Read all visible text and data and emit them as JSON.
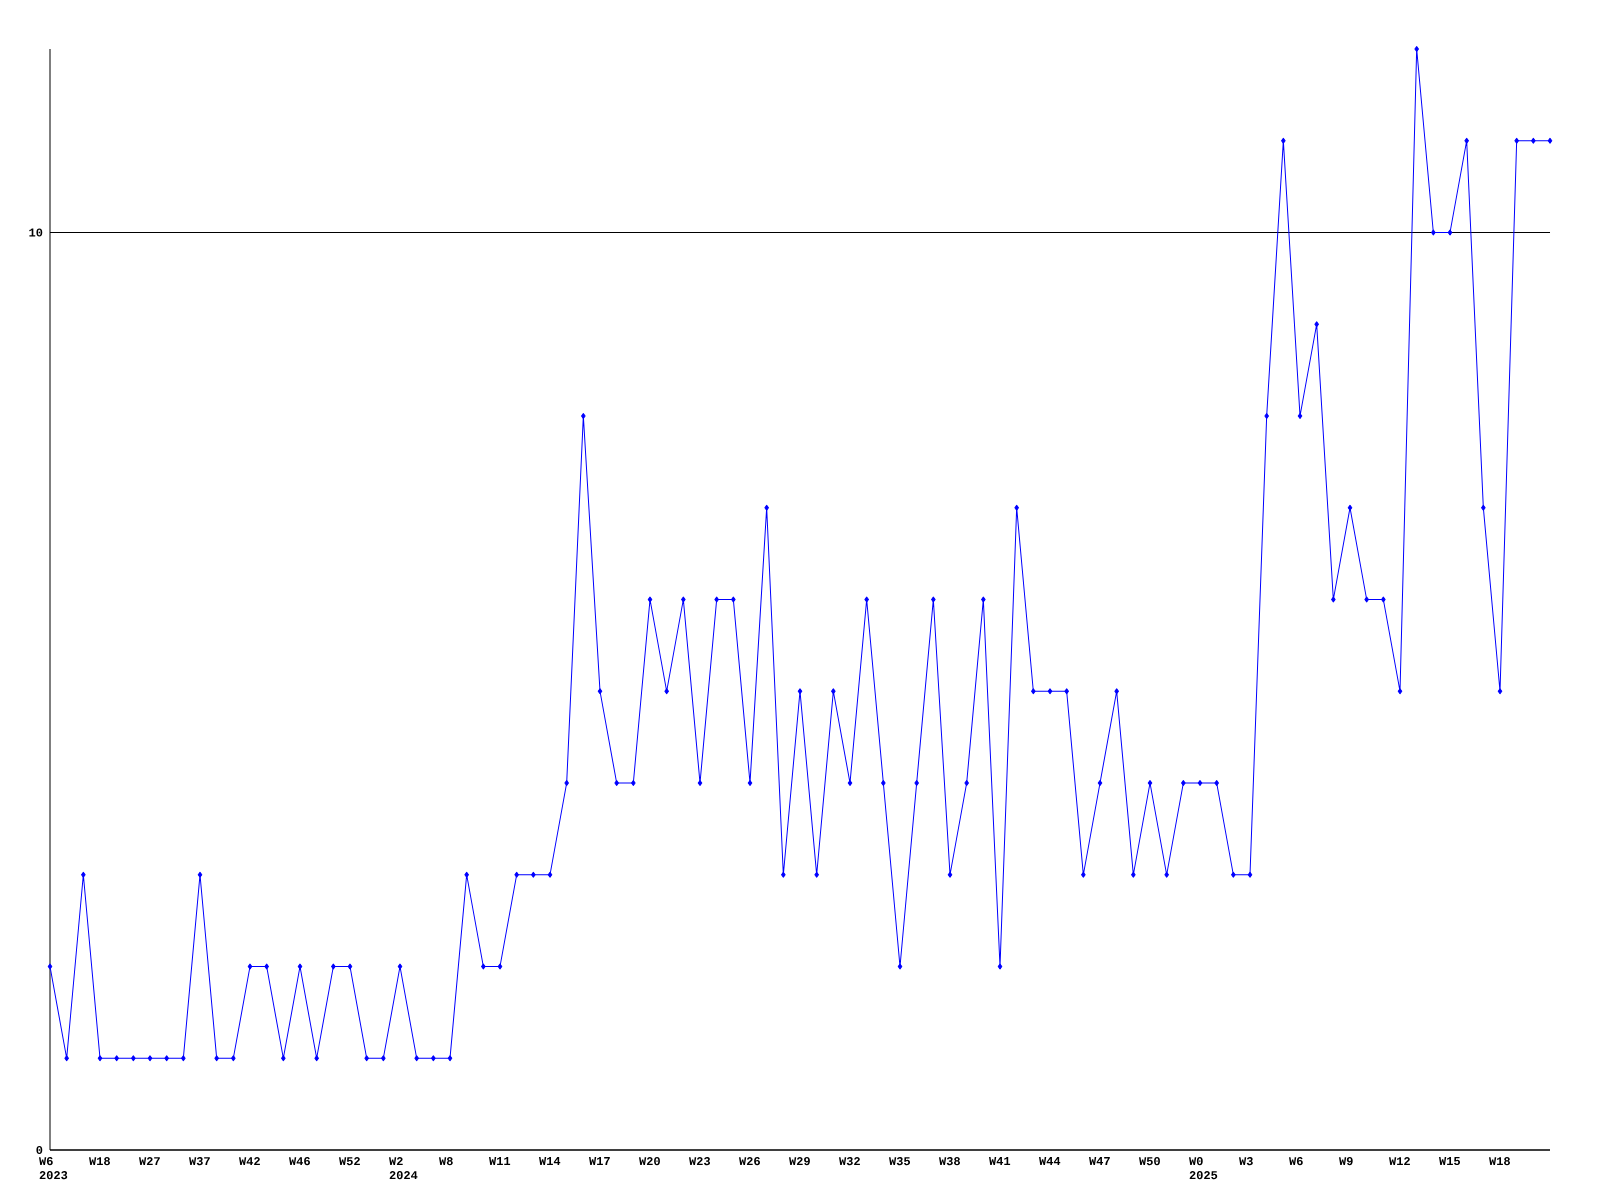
{
  "chart_data": {
    "type": "line",
    "categories": [
      "W6 2023",
      null,
      null,
      "W18",
      null,
      null,
      "W27",
      null,
      null,
      "W37",
      null,
      null,
      "W42",
      null,
      null,
      "W46",
      null,
      null,
      "W52",
      null,
      null,
      "W2 2024",
      null,
      null,
      "W8",
      null,
      null,
      "W11",
      null,
      null,
      "W14",
      null,
      null,
      "W17",
      null,
      null,
      "W20",
      null,
      null,
      "W23",
      null,
      null,
      "W26",
      null,
      null,
      "W29",
      null,
      null,
      "W32",
      null,
      null,
      "W35",
      null,
      null,
      "W38",
      null,
      null,
      "W41",
      null,
      null,
      "W44",
      null,
      null,
      "W47",
      null,
      null,
      "W50",
      null,
      null,
      "W0 2025",
      null,
      null,
      "W3",
      null,
      null,
      "W6",
      null,
      null,
      "W9",
      null,
      null,
      "W12",
      null,
      null,
      "W15",
      null,
      null,
      "W18",
      null,
      null,
      null
    ],
    "values": [
      2,
      1,
      3,
      1,
      1,
      1,
      1,
      1,
      1,
      3,
      1,
      1,
      2,
      2,
      1,
      2,
      1,
      2,
      2,
      1,
      1,
      2,
      1,
      1,
      1,
      3,
      2,
      2,
      3,
      3,
      3,
      4,
      8,
      5,
      4,
      4,
      6,
      5,
      6,
      4,
      6,
      6,
      4,
      7,
      3,
      5,
      3,
      5,
      4,
      6,
      4,
      2,
      4,
      6,
      3,
      4,
      6,
      2,
      7,
      5,
      5,
      5,
      3,
      4,
      5,
      3,
      4,
      3,
      4,
      4,
      4,
      3,
      3,
      8,
      11,
      8,
      9,
      6,
      7,
      6,
      6,
      5,
      12,
      10,
      10,
      11,
      7,
      5,
      11,
      11,
      11
    ],
    "color": "#0000ff",
    "marker": "diamond",
    "line_style": "solid",
    "ylim": [
      0,
      12
    ],
    "yticks": [
      0,
      10
    ],
    "grid": "y"
  }
}
